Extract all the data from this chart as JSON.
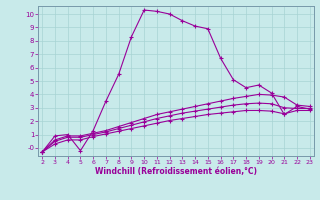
{
  "xlabel": "Windchill (Refroidissement éolien,°C)",
  "bg_color": "#c8eaea",
  "line_color": "#990099",
  "grid_color": "#a8d4d4",
  "series1": [
    [
      2,
      -0.3
    ],
    [
      3,
      0.9
    ],
    [
      4,
      1.0
    ],
    [
      5,
      -0.2
    ],
    [
      6,
      1.3
    ],
    [
      7,
      3.5
    ],
    [
      8,
      5.5
    ],
    [
      9,
      8.3
    ],
    [
      10,
      10.3
    ],
    [
      11,
      10.2
    ],
    [
      12,
      10.0
    ],
    [
      13,
      9.5
    ],
    [
      14,
      9.1
    ],
    [
      15,
      8.9
    ],
    [
      16,
      6.7
    ],
    [
      17,
      5.1
    ],
    [
      18,
      4.5
    ],
    [
      19,
      4.7
    ],
    [
      20,
      4.1
    ],
    [
      21,
      2.5
    ],
    [
      22,
      3.1
    ],
    [
      23,
      2.9
    ]
  ],
  "series2": [
    [
      2,
      -0.3
    ],
    [
      3,
      0.6
    ],
    [
      4,
      0.9
    ],
    [
      5,
      0.9
    ],
    [
      6,
      1.1
    ],
    [
      7,
      1.3
    ],
    [
      8,
      1.6
    ],
    [
      9,
      1.9
    ],
    [
      10,
      2.2
    ],
    [
      11,
      2.5
    ],
    [
      12,
      2.7
    ],
    [
      13,
      2.9
    ],
    [
      14,
      3.1
    ],
    [
      15,
      3.3
    ],
    [
      16,
      3.5
    ],
    [
      17,
      3.7
    ],
    [
      18,
      3.85
    ],
    [
      19,
      4.0
    ],
    [
      20,
      3.95
    ],
    [
      21,
      3.8
    ],
    [
      22,
      3.2
    ],
    [
      23,
      3.1
    ]
  ],
  "series3": [
    [
      2,
      -0.3
    ],
    [
      3,
      0.5
    ],
    [
      4,
      0.8
    ],
    [
      5,
      0.8
    ],
    [
      6,
      1.0
    ],
    [
      7,
      1.2
    ],
    [
      8,
      1.45
    ],
    [
      9,
      1.7
    ],
    [
      10,
      1.95
    ],
    [
      11,
      2.2
    ],
    [
      12,
      2.4
    ],
    [
      13,
      2.6
    ],
    [
      14,
      2.75
    ],
    [
      15,
      2.9
    ],
    [
      16,
      3.05
    ],
    [
      17,
      3.2
    ],
    [
      18,
      3.3
    ],
    [
      19,
      3.35
    ],
    [
      20,
      3.3
    ],
    [
      21,
      3.0
    ],
    [
      22,
      2.95
    ],
    [
      23,
      2.95
    ]
  ],
  "series4": [
    [
      2,
      -0.3
    ],
    [
      3,
      0.3
    ],
    [
      4,
      0.6
    ],
    [
      5,
      0.6
    ],
    [
      6,
      0.85
    ],
    [
      7,
      1.05
    ],
    [
      8,
      1.25
    ],
    [
      9,
      1.45
    ],
    [
      10,
      1.65
    ],
    [
      11,
      1.85
    ],
    [
      12,
      2.05
    ],
    [
      13,
      2.2
    ],
    [
      14,
      2.35
    ],
    [
      15,
      2.5
    ],
    [
      16,
      2.6
    ],
    [
      17,
      2.7
    ],
    [
      18,
      2.8
    ],
    [
      19,
      2.8
    ],
    [
      20,
      2.75
    ],
    [
      21,
      2.55
    ],
    [
      22,
      2.8
    ],
    [
      23,
      2.8
    ]
  ],
  "ylim": [
    -0.6,
    10.6
  ],
  "xlim": [
    1.7,
    23.3
  ],
  "yticks": [
    0,
    1,
    2,
    3,
    4,
    5,
    6,
    7,
    8,
    9,
    10
  ],
  "ytick_labels": [
    "-0",
    "1",
    "2",
    "3",
    "4",
    "5",
    "6",
    "7",
    "8",
    "9",
    "10"
  ],
  "xticks": [
    2,
    3,
    4,
    5,
    6,
    7,
    8,
    9,
    10,
    11,
    12,
    13,
    14,
    15,
    16,
    17,
    18,
    19,
    20,
    21,
    22,
    23
  ]
}
